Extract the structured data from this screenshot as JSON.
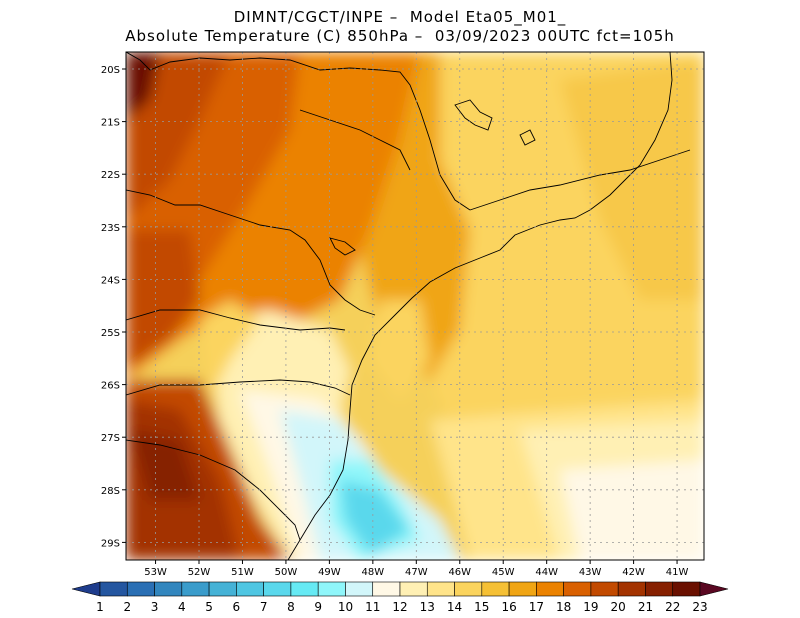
{
  "header": {
    "line1": "DIMNT/CGCT/INPE –  Model Eta05_M01_",
    "line2": "Absolute Temperature (C) 850hPa –  03/09/2023 00UTC fct=105h"
  },
  "map": {
    "lat_labels": [
      "20S",
      "21S",
      "22S",
      "23S",
      "24S",
      "25S",
      "26S",
      "27S",
      "28S",
      "29S"
    ],
    "lon_labels": [
      "53W",
      "52W",
      "51W",
      "50W",
      "49W",
      "48W",
      "47W",
      "46W",
      "45W",
      "44W",
      "43W",
      "42W",
      "41W"
    ]
  },
  "colorbar": {
    "labels": [
      "1",
      "2",
      "3",
      "4",
      "5",
      "6",
      "7",
      "8",
      "9",
      "10",
      "11",
      "12",
      "13",
      "14",
      "15",
      "16",
      "17",
      "18",
      "19",
      "20",
      "21",
      "22",
      "23"
    ],
    "colors": [
      "#1e3c8c",
      "#2456a0",
      "#2a6fb4",
      "#3286be",
      "#3a9ccb",
      "#45b2d6",
      "#4fc6e2",
      "#5ad8ec",
      "#66eaf4",
      "#8ff6fa",
      "#d2f6fa",
      "#fff8e6",
      "#fff0b4",
      "#ffe48a",
      "#fbd45e",
      "#f5c035",
      "#f0a514",
      "#eb8200",
      "#d96000",
      "#c24a00",
      "#a33300",
      "#862000",
      "#6a1000",
      "#5a0822"
    ]
  }
}
